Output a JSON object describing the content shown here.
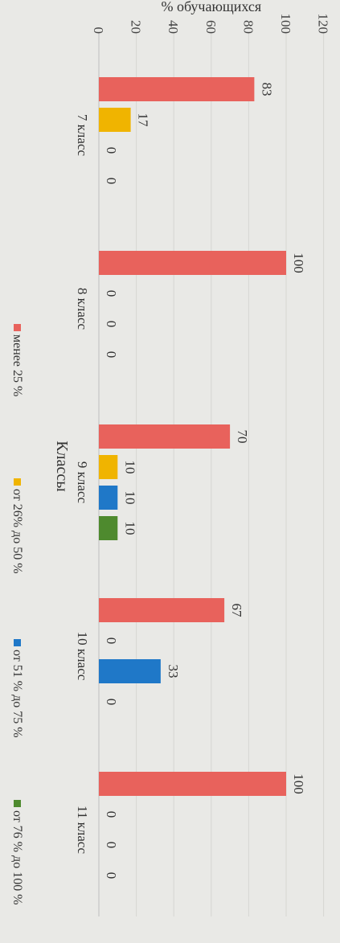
{
  "chart_data": {
    "type": "bar",
    "orientation": "rotated-90-clockwise",
    "categories": [
      "7 класс",
      "8 класс",
      "9 класс",
      "10 класс",
      "11 класс"
    ],
    "series": [
      {
        "name": "менее 25 %",
        "values": [
          83,
          100,
          70,
          67,
          100
        ],
        "color": "#e8625c"
      },
      {
        "name": "от 26% до 50 %",
        "values": [
          17,
          0,
          10,
          0,
          0
        ],
        "color": "#f0b400"
      },
      {
        "name": "от 51 % до 75 %",
        "values": [
          0,
          0,
          10,
          33,
          0
        ],
        "color": "#1f78c8"
      },
      {
        "name": "от 76 % до 100 %",
        "values": [
          0,
          0,
          10,
          0,
          0
        ],
        "color": "#4e8a2e"
      }
    ],
    "data_labels": [
      [
        "83",
        "100",
        "70",
        "67",
        "100"
      ],
      [
        "17",
        "0",
        "10",
        "0",
        "0"
      ],
      [
        "0",
        "0",
        "10",
        "33",
        "0"
      ],
      [
        "0",
        "0",
        "10",
        "0",
        "0"
      ]
    ],
    "xlabel": "Классы",
    "ylabel": "% обучающихся",
    "ylim": [
      0,
      120
    ],
    "yticks": [
      "0",
      "20",
      "40",
      "60",
      "80",
      "100",
      "120"
    ],
    "grid": true,
    "legend": "bottom"
  }
}
